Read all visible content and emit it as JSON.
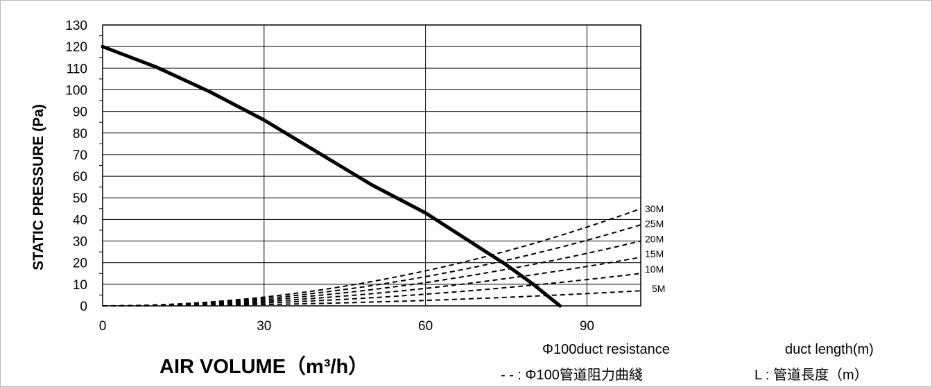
{
  "chart_data": {
    "type": "line",
    "title": "",
    "xlabel": "AIR VOLUME（m³/h）",
    "ylabel": "STATIC PRESSURE (Pa)",
    "xlim": [
      0,
      100
    ],
    "ylim": [
      0,
      130
    ],
    "x_ticks": [
      0,
      30,
      60,
      90
    ],
    "y_ticks": [
      0,
      10,
      20,
      30,
      40,
      50,
      60,
      70,
      80,
      90,
      100,
      110,
      120,
      130
    ],
    "grid": true,
    "series": [
      {
        "name": "",
        "style": "solid",
        "x": [
          0,
          10,
          20,
          30,
          40,
          50,
          60,
          70,
          75,
          80,
          85
        ],
        "y": [
          120,
          110.5,
          99,
          86,
          71,
          56,
          43,
          27,
          19,
          10,
          0
        ]
      }
    ],
    "duct_curves": [
      {
        "label": "5M",
        "x": [
          0,
          100
        ],
        "k": 7
      },
      {
        "label": "10M",
        "x": [
          0,
          100
        ],
        "k": 15
      },
      {
        "label": "15M",
        "x": [
          0,
          100
        ],
        "k": 22.5
      },
      {
        "label": "20M",
        "x": [
          0,
          100
        ],
        "k": 30
      },
      {
        "label": "25M",
        "x": [
          0,
          100
        ],
        "k": 37.5
      },
      {
        "label": "30M",
        "x": [
          0,
          100
        ],
        "k": 45
      }
    ],
    "legend_notes": {
      "duct_resistance_en": "Φ100duct resistance",
      "duct_length_en": "duct length(m)",
      "duct_resistance_zh": "- - : Φ100管道阻力曲綫",
      "duct_length_zh": "L : 管道長度（m）"
    }
  }
}
